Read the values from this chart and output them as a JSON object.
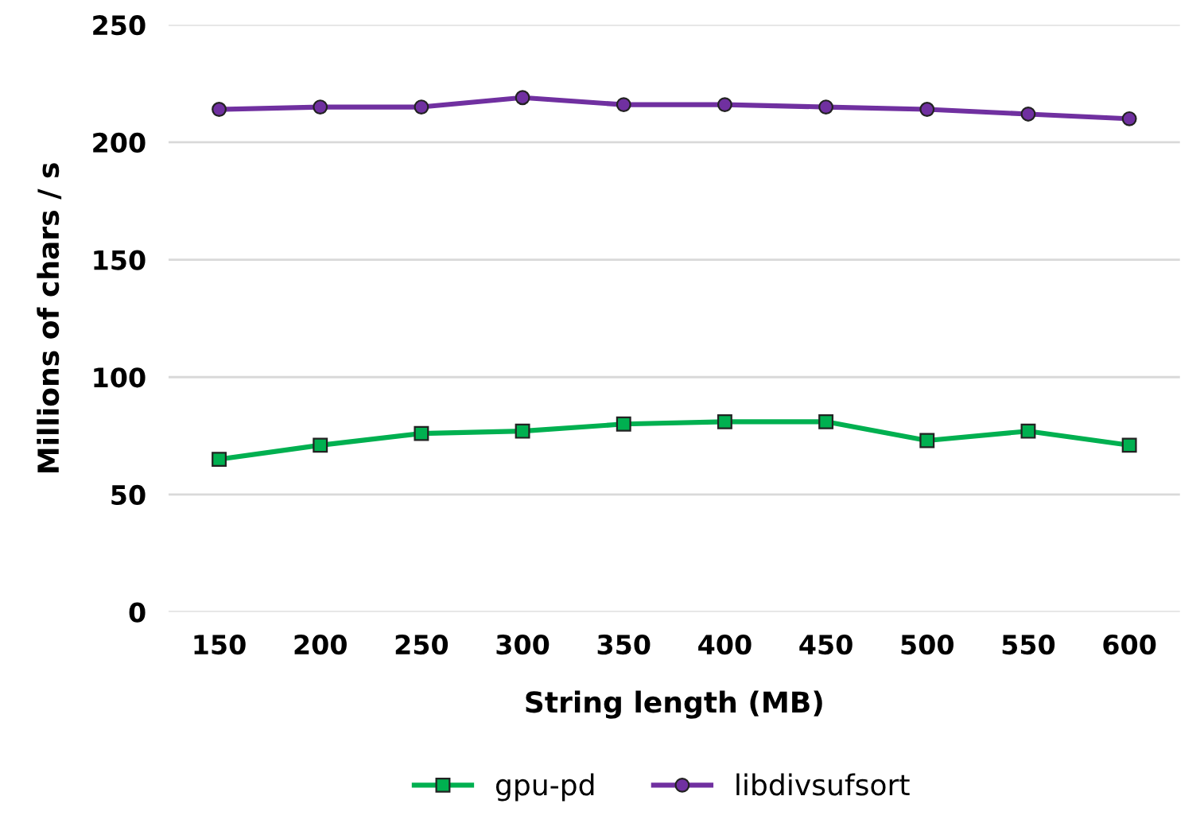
{
  "chart_data": {
    "type": "line",
    "xlabel": "String length (MB)",
    "ylabel": "Millions of chars / s",
    "categories": [
      "150",
      "200",
      "250",
      "300",
      "350",
      "400",
      "450",
      "500",
      "550",
      "600"
    ],
    "series": [
      {
        "name": "gpu-pd",
        "color": "#00b050",
        "marker": "square",
        "values": [
          65,
          71,
          76,
          77,
          80,
          81,
          81,
          73,
          77,
          71
        ]
      },
      {
        "name": "libdivsufsort",
        "color": "#7030a0",
        "marker": "circle",
        "values": [
          214,
          215,
          215,
          219,
          216,
          216,
          215,
          214,
          212,
          210
        ]
      }
    ],
    "ylim": [
      0,
      250
    ],
    "yticks": [
      0,
      50,
      100,
      150,
      200,
      250
    ],
    "grid": "y",
    "legend": "bottom",
    "line_style": "solid"
  }
}
